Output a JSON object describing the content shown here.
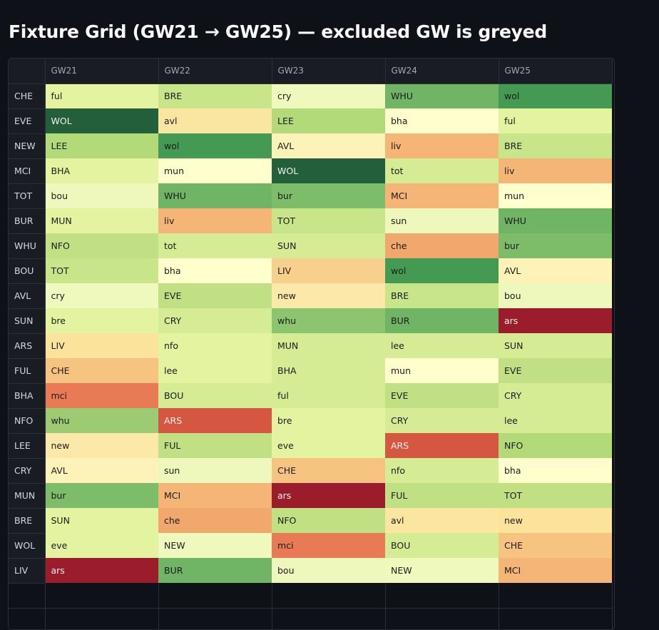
{
  "title": "Fixture Grid (GW21 → GW25) — excluded GW is greyed",
  "columns": [
    "GW21",
    "GW22",
    "GW23",
    "GW24",
    "GW25"
  ],
  "rows": [
    {
      "team": "CHE",
      "cells": [
        {
          "t": "ful",
          "c": "#e4f3a0"
        },
        {
          "t": "BRE",
          "c": "#c9e58a"
        },
        {
          "t": "cry",
          "c": "#f0f9bd"
        },
        {
          "t": "WHU",
          "c": "#70b565"
        },
        {
          "t": "wol",
          "c": "#459a53"
        }
      ]
    },
    {
      "team": "EVE",
      "cells": [
        {
          "t": "WOL",
          "c": "#235f3b"
        },
        {
          "t": "avl",
          "c": "#fbe6a1"
        },
        {
          "t": "LEE",
          "c": "#b3da78"
        },
        {
          "t": "bha",
          "c": "#feffcd"
        },
        {
          "t": "ful",
          "c": "#e4f3a0"
        }
      ]
    },
    {
      "team": "NEW",
      "cells": [
        {
          "t": "LEE",
          "c": "#b3da78"
        },
        {
          "t": "wol",
          "c": "#459a53"
        },
        {
          "t": "AVL",
          "c": "#fdf3b8"
        },
        {
          "t": "liv",
          "c": "#f4b577"
        },
        {
          "t": "BRE",
          "c": "#c9e58a"
        }
      ]
    },
    {
      "team": "MCI",
      "cells": [
        {
          "t": "BHA",
          "c": "#e4f3a0"
        },
        {
          "t": "mun",
          "c": "#feffcd"
        },
        {
          "t": "WOL",
          "c": "#235f3b"
        },
        {
          "t": "tot",
          "c": "#d6ec94"
        },
        {
          "t": "liv",
          "c": "#f4b577"
        }
      ]
    },
    {
      "team": "TOT",
      "cells": [
        {
          "t": "bou",
          "c": "#eff8bc"
        },
        {
          "t": "WHU",
          "c": "#70b565"
        },
        {
          "t": "bur",
          "c": "#7dbc68"
        },
        {
          "t": "MCI",
          "c": "#f4b577"
        },
        {
          "t": "mun",
          "c": "#feffcd"
        }
      ]
    },
    {
      "team": "BUR",
      "cells": [
        {
          "t": "MUN",
          "c": "#e4f3a0"
        },
        {
          "t": "liv",
          "c": "#f4b577"
        },
        {
          "t": "TOT",
          "c": "#c9e58a"
        },
        {
          "t": "sun",
          "c": "#eff8bc"
        },
        {
          "t": "WHU",
          "c": "#70b565"
        }
      ]
    },
    {
      "team": "WHU",
      "cells": [
        {
          "t": "NFO",
          "c": "#c0e083"
        },
        {
          "t": "tot",
          "c": "#d6ec94"
        },
        {
          "t": "SUN",
          "c": "#d6ec94"
        },
        {
          "t": "che",
          "c": "#f0a86c"
        },
        {
          "t": "bur",
          "c": "#7dbc68"
        }
      ]
    },
    {
      "team": "BOU",
      "cells": [
        {
          "t": "TOT",
          "c": "#c9e58a"
        },
        {
          "t": "bha",
          "c": "#feffcd"
        },
        {
          "t": "LIV",
          "c": "#f8d08d"
        },
        {
          "t": "wol",
          "c": "#459a53"
        },
        {
          "t": "AVL",
          "c": "#fdf3b8"
        }
      ]
    },
    {
      "team": "AVL",
      "cells": [
        {
          "t": "cry",
          "c": "#f0f9bd"
        },
        {
          "t": "EVE",
          "c": "#c0e083"
        },
        {
          "t": "new",
          "c": "#fce9aa"
        },
        {
          "t": "BRE",
          "c": "#c9e58a"
        },
        {
          "t": "bou",
          "c": "#eff8bc"
        }
      ]
    },
    {
      "team": "SUN",
      "cells": [
        {
          "t": "bre",
          "c": "#e4f3a0"
        },
        {
          "t": "CRY",
          "c": "#d6ec94"
        },
        {
          "t": "whu",
          "c": "#8cc46f"
        },
        {
          "t": "BUR",
          "c": "#70b565"
        },
        {
          "t": "ars",
          "c": "#9b1c2b"
        }
      ]
    },
    {
      "team": "ARS",
      "cells": [
        {
          "t": "LIV",
          "c": "#fbe39c"
        },
        {
          "t": "nfo",
          "c": "#e4f3a0"
        },
        {
          "t": "MUN",
          "c": "#d6ec94"
        },
        {
          "t": "lee",
          "c": "#d6ec94"
        },
        {
          "t": "SUN",
          "c": "#d6ec94"
        }
      ]
    },
    {
      "team": "FUL",
      "cells": [
        {
          "t": "CHE",
          "c": "#f6c480"
        },
        {
          "t": "lee",
          "c": "#e4f3a0"
        },
        {
          "t": "BHA",
          "c": "#d6ec94"
        },
        {
          "t": "mun",
          "c": "#feffcd"
        },
        {
          "t": "EVE",
          "c": "#c0e083"
        }
      ]
    },
    {
      "team": "BHA",
      "cells": [
        {
          "t": "mci",
          "c": "#e97a56"
        },
        {
          "t": "BOU",
          "c": "#d6ec94"
        },
        {
          "t": "ful",
          "c": "#d6ec94"
        },
        {
          "t": "EVE",
          "c": "#c0e083"
        },
        {
          "t": "CRY",
          "c": "#d6ec94"
        }
      ]
    },
    {
      "team": "NFO",
      "cells": [
        {
          "t": "whu",
          "c": "#9ccb74"
        },
        {
          "t": "ARS",
          "c": "#d55741"
        },
        {
          "t": "bre",
          "c": "#e4f3a0"
        },
        {
          "t": "CRY",
          "c": "#d6ec94"
        },
        {
          "t": "lee",
          "c": "#d6ec94"
        }
      ]
    },
    {
      "team": "LEE",
      "cells": [
        {
          "t": "new",
          "c": "#fce9aa"
        },
        {
          "t": "FUL",
          "c": "#c0e083"
        },
        {
          "t": "eve",
          "c": "#e4f3a0"
        },
        {
          "t": "ARS",
          "c": "#d55741"
        },
        {
          "t": "NFO",
          "c": "#b3da78"
        }
      ]
    },
    {
      "team": "CRY",
      "cells": [
        {
          "t": "AVL",
          "c": "#fdf3b8"
        },
        {
          "t": "sun",
          "c": "#eff8bc"
        },
        {
          "t": "CHE",
          "c": "#f6c480"
        },
        {
          "t": "nfo",
          "c": "#d6ec94"
        },
        {
          "t": "bha",
          "c": "#feffcd"
        }
      ]
    },
    {
      "team": "MUN",
      "cells": [
        {
          "t": "bur",
          "c": "#7dbc68"
        },
        {
          "t": "MCI",
          "c": "#f4b577"
        },
        {
          "t": "ars",
          "c": "#9b1c2b"
        },
        {
          "t": "FUL",
          "c": "#c0e083"
        },
        {
          "t": "TOT",
          "c": "#c0e083"
        }
      ]
    },
    {
      "team": "BRE",
      "cells": [
        {
          "t": "SUN",
          "c": "#e4f3a0"
        },
        {
          "t": "che",
          "c": "#f0a86c"
        },
        {
          "t": "NFO",
          "c": "#c0e083"
        },
        {
          "t": "avl",
          "c": "#fbe6a1"
        },
        {
          "t": "new",
          "c": "#fbe39c"
        }
      ]
    },
    {
      "team": "WOL",
      "cells": [
        {
          "t": "eve",
          "c": "#e4f3a0"
        },
        {
          "t": "NEW",
          "c": "#f0f9bd"
        },
        {
          "t": "mci",
          "c": "#e97a56"
        },
        {
          "t": "BOU",
          "c": "#d6ec94"
        },
        {
          "t": "CHE",
          "c": "#f6c480"
        }
      ]
    },
    {
      "team": "LIV",
      "cells": [
        {
          "t": "ars",
          "c": "#9b1c2b"
        },
        {
          "t": "BUR",
          "c": "#70b565"
        },
        {
          "t": "bou",
          "c": "#eff8bc"
        },
        {
          "t": "NEW",
          "c": "#f0f9bd"
        },
        {
          "t": "MCI",
          "c": "#f4b577"
        }
      ]
    }
  ]
}
